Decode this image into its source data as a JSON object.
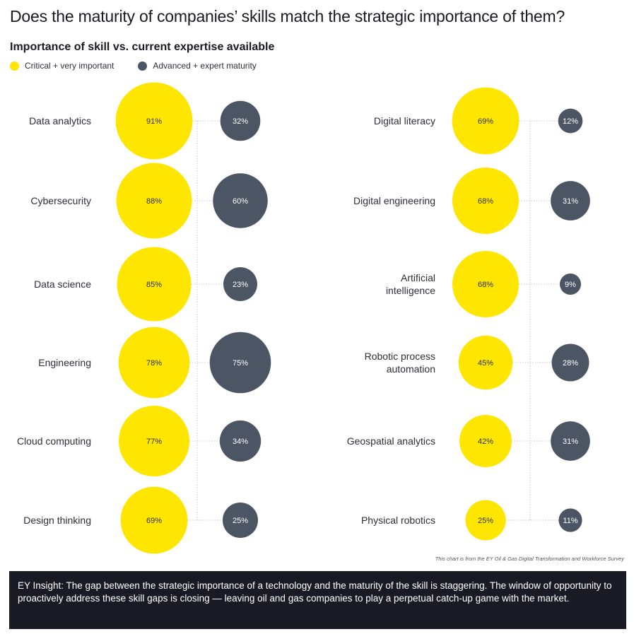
{
  "title": "Does the maturity of companies’ skills match the strategic importance of them?",
  "subtitle": "Importance of skill vs. current expertise available",
  "legend": {
    "importance": {
      "label": "Critical + very important",
      "color": "#ffe600"
    },
    "maturity": {
      "label": "Advanced + expert maturity",
      "color": "#4c5563"
    }
  },
  "chart_data": {
    "type": "bubble",
    "series": [
      {
        "name": "Critical + very important",
        "color": "#ffe600"
      },
      {
        "name": "Advanced + expert maturity",
        "color": "#4c5563"
      }
    ],
    "columns": [
      [
        {
          "skill": "Data analytics",
          "importance": 91,
          "maturity": 32
        },
        {
          "skill": "Cybersecurity",
          "importance": 88,
          "maturity": 60
        },
        {
          "skill": "Data science",
          "importance": 85,
          "maturity": 23
        },
        {
          "skill": "Engineering",
          "importance": 78,
          "maturity": 75
        },
        {
          "skill": "Cloud computing",
          "importance": 77,
          "maturity": 34
        },
        {
          "skill": "Design thinking",
          "importance": 69,
          "maturity": 25
        }
      ],
      [
        {
          "skill": "Digital literacy",
          "importance": 69,
          "maturity": 12
        },
        {
          "skill": "Digital engineering",
          "importance": 68,
          "maturity": 31
        },
        {
          "skill": "Artificial intelligence",
          "importance": 68,
          "maturity": 9
        },
        {
          "skill": "Robotic process automation",
          "importance": 45,
          "maturity": 28
        },
        {
          "skill": "Geospatial analytics",
          "importance": 42,
          "maturity": 31
        },
        {
          "skill": "Physical robotics",
          "importance": 25,
          "maturity": 11
        }
      ]
    ]
  },
  "source": "This chart is from the EY Oil & Gas Digital Transformation and Workforce Survey",
  "insight": "EY Insight: The gap between the strategic importance of a technology and the maturity of the skill is staggering. The window of opportunity to proactively address these skill gaps is closing — leaving oil and gas companies to play a perpetual catch-up game with the market."
}
